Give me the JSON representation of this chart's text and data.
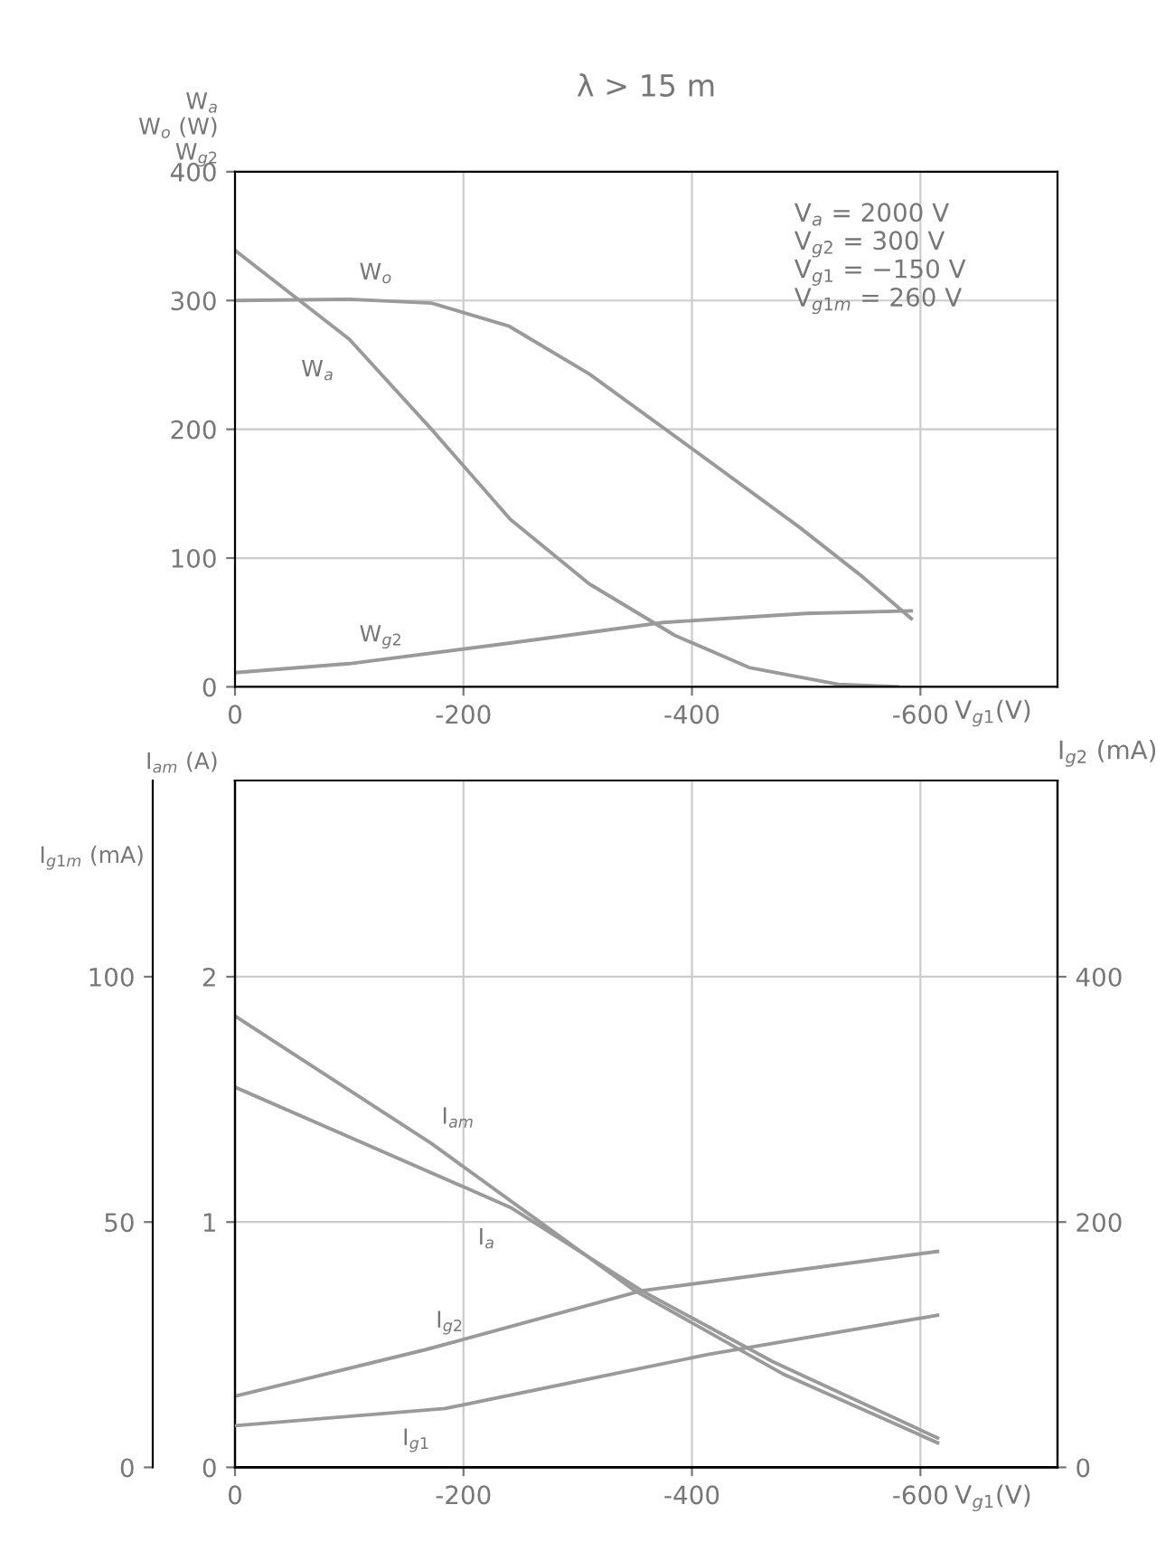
{
  "chart_data": [
    {
      "type": "line",
      "title": "λ > 15 m",
      "ylabel": "W$_{a}$\nW$_{o}$ (W)\nW$_{g2}$",
      "xlabel": "V$_{g1}$(V)",
      "xlim": [
        0,
        -720
      ],
      "ylim": [
        0,
        400
      ],
      "xticks": [
        0,
        -200,
        -400,
        -600
      ],
      "yticks": [
        0,
        100,
        200,
        300,
        400
      ],
      "grid": true,
      "legend": false,
      "annotations": [
        "V$_{a}$ = 2000 V",
        "V$_{g2}$ = 300 V",
        "V$_{g1}$ = −150 V",
        "V$_{g1m}$ = 260 V"
      ],
      "series": [
        {
          "name": "W$_{o}$",
          "color": "#9a9a9a",
          "x": [
            0,
            -100,
            -172,
            -240,
            -310,
            -400,
            -494,
            -550,
            -592
          ],
          "values": [
            300,
            301,
            298,
            280,
            243,
            185,
            124,
            85,
            53
          ]
        },
        {
          "name": "W$_{a}$",
          "color": "#9a9a9a",
          "x": [
            0,
            -100,
            -172,
            -241,
            -310,
            -385,
            -450,
            -528,
            -580
          ],
          "values": [
            339,
            270,
            200,
            130,
            80,
            40,
            15,
            2,
            0
          ]
        },
        {
          "name": "W$_{g2}$",
          "color": "#9a9a9a",
          "x": [
            0,
            -100,
            -241,
            -375,
            -500,
            -592
          ],
          "values": [
            11,
            18,
            34,
            50,
            57,
            59
          ]
        }
      ]
    },
    {
      "type": "line",
      "ylabel": "I$_{am}$ (A)",
      "y2label": "I$_{g2}$ (mA)",
      "y3label": "I$_{g1m}$ (mA)",
      "xlabel": "V$_{g1}$(V)",
      "xlim": [
        0,
        -720
      ],
      "ylim": [
        0,
        2.8
      ],
      "y2lim": [
        0,
        560
      ],
      "y3lim": [
        0,
        140
      ],
      "xticks": [
        0,
        -200,
        -400,
        -600
      ],
      "yticks": [
        0,
        1,
        2
      ],
      "y2ticks": [
        0,
        200,
        400
      ],
      "y3ticks": [
        0,
        50,
        100
      ],
      "grid": true,
      "legend": false,
      "series": [
        {
          "name": "I$_{am}$",
          "color": "#9a9a9a",
          "x": [
            0,
            -172,
            -350,
            -480,
            -615
          ],
          "values": [
            1.84,
            1.32,
            0.72,
            0.38,
            0.1
          ]
        },
        {
          "name": "I$_{a}$",
          "color": "#9a9a9a",
          "x": [
            0,
            -241,
            -356,
            -471,
            -615
          ],
          "values": [
            1.55,
            1.06,
            0.72,
            0.43,
            0.12
          ]
        },
        {
          "name": "I$_{g2}$",
          "color": "#9a9a9a",
          "axis": "y2",
          "x": [
            0,
            -167,
            -356,
            -615
          ],
          "values": [
            58,
            96,
            144,
            176
          ]
        },
        {
          "name": "I$_{g1}$",
          "color": "#9a9a9a",
          "axis": "y3",
          "x": [
            0,
            -184,
            -414,
            -615
          ],
          "values": [
            8.5,
            12,
            23,
            31
          ]
        }
      ]
    }
  ]
}
